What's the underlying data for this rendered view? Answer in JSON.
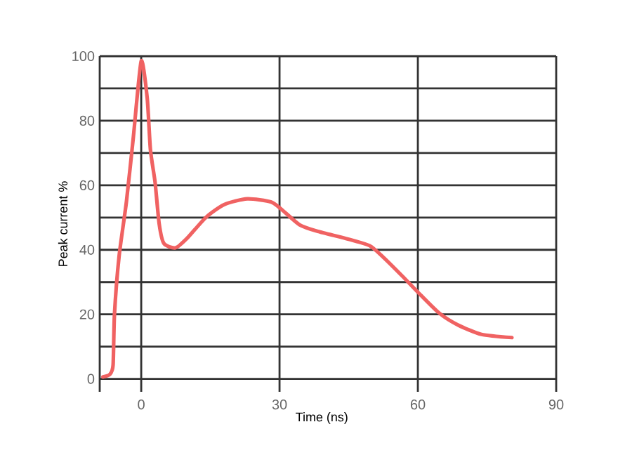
{
  "chart_data": {
    "type": "line",
    "xlabel": "Time (ns)",
    "ylabel": "Peak current %",
    "xlim": [
      -9,
      90
    ],
    "ylim": [
      -4,
      100
    ],
    "xticks": [
      0,
      30,
      60,
      90
    ],
    "yticks": [
      0,
      {
        "value": 10,
        "label": null
      },
      20,
      {
        "value": 30,
        "label": null
      },
      40,
      {
        "value": 50,
        "label": null
      },
      60,
      {
        "value": 70,
        "label": null
      },
      80,
      {
        "value": 90,
        "label": null
      },
      100
    ],
    "grid": true,
    "marker": "none",
    "line_style": "solid",
    "series": [
      {
        "color": "#f06262",
        "x": [
          -8.3,
          -6.8,
          -6.1,
          -5.8,
          -4.8,
          -3.2,
          -1.7,
          0,
          1.3,
          2.0,
          3.0,
          3.9,
          4.9,
          7.4,
          9.9,
          14,
          18,
          23,
          28.2,
          30.7,
          34.3,
          38.3,
          44.4,
          49.5,
          52.5,
          56.6,
          60.6,
          64.7,
          68.7,
          73.8,
          80.4
        ],
        "values": [
          0.6,
          1.4,
          4.3,
          20,
          38,
          55,
          75,
          98.5,
          87,
          71,
          61,
          48,
          42,
          40.6,
          43.5,
          50,
          54,
          55.8,
          54.8,
          52.2,
          47.8,
          45.7,
          43.5,
          41.3,
          37.7,
          31.9,
          26,
          20.3,
          16.7,
          13.8,
          12.8
        ]
      }
    ]
  }
}
